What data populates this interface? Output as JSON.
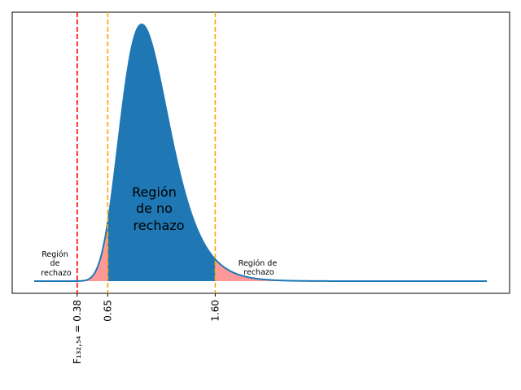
{
  "chart_data": {
    "type": "area",
    "distribution": "F",
    "df": [
      132,
      54
    ],
    "x_range": [
      0.0,
      4.0
    ],
    "curve_color": "#1f77b4",
    "fill_color": "#1f77b4",
    "reject_fill_color": "#ff9999",
    "critical_lower": 0.65,
    "critical_upper": 1.6,
    "observed": 0.38,
    "critical_line_color": "#ffa500",
    "observed_line_color": "#ff0000",
    "xticks": [
      {
        "value": 0.38,
        "label": "F₁₃₂,₅₄ = 0.38"
      },
      {
        "value": 0.65,
        "label": "0.65"
      },
      {
        "value": 1.6,
        "label": "1.60"
      }
    ],
    "annotations": {
      "left_region": [
        "Región",
        "de",
        "rechazo"
      ],
      "center_region": [
        "Región",
        "de no",
        "rechazo"
      ],
      "right_region": [
        "Región de",
        "rechazo"
      ]
    },
    "yticks": "none",
    "grid": false,
    "legend": "none"
  }
}
